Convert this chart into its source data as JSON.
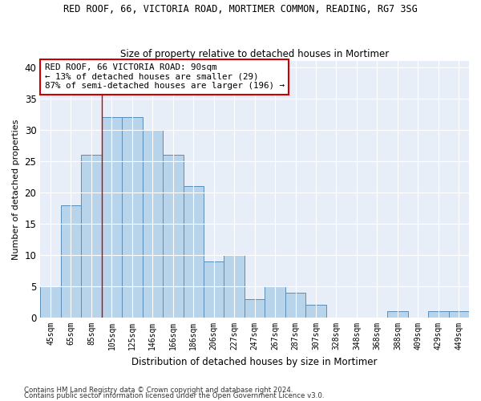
{
  "title": "RED ROOF, 66, VICTORIA ROAD, MORTIMER COMMON, READING, RG7 3SG",
  "subtitle": "Size of property relative to detached houses in Mortimer",
  "xlabel": "Distribution of detached houses by size in Mortimer",
  "ylabel": "Number of detached properties",
  "categories": [
    "45sqm",
    "65sqm",
    "85sqm",
    "105sqm",
    "125sqm",
    "146sqm",
    "166sqm",
    "186sqm",
    "206sqm",
    "227sqm",
    "247sqm",
    "267sqm",
    "287sqm",
    "307sqm",
    "328sqm",
    "348sqm",
    "368sqm",
    "388sqm",
    "409sqm",
    "429sqm",
    "449sqm"
  ],
  "values": [
    5,
    18,
    26,
    32,
    32,
    30,
    26,
    21,
    9,
    10,
    3,
    5,
    4,
    2,
    0,
    0,
    0,
    1,
    0,
    1,
    1
  ],
  "bar_color": "#b8d4ea",
  "bar_edge_color": "#5b8db8",
  "background_color": "#e8eef8",
  "vline_after_index": 2,
  "vline_color": "#cc0000",
  "annotation_title": "RED ROOF, 66 VICTORIA ROAD: 90sqm",
  "annotation_line1": "← 13% of detached houses are smaller (29)",
  "annotation_line2": "87% of semi-detached houses are larger (196) →",
  "annotation_box_edgecolor": "#cc0000",
  "ylim": [
    0,
    41
  ],
  "yticks": [
    0,
    5,
    10,
    15,
    20,
    25,
    30,
    35,
    40
  ],
  "footnote1": "Contains HM Land Registry data © Crown copyright and database right 2024.",
  "footnote2": "Contains public sector information licensed under the Open Government Licence v3.0."
}
